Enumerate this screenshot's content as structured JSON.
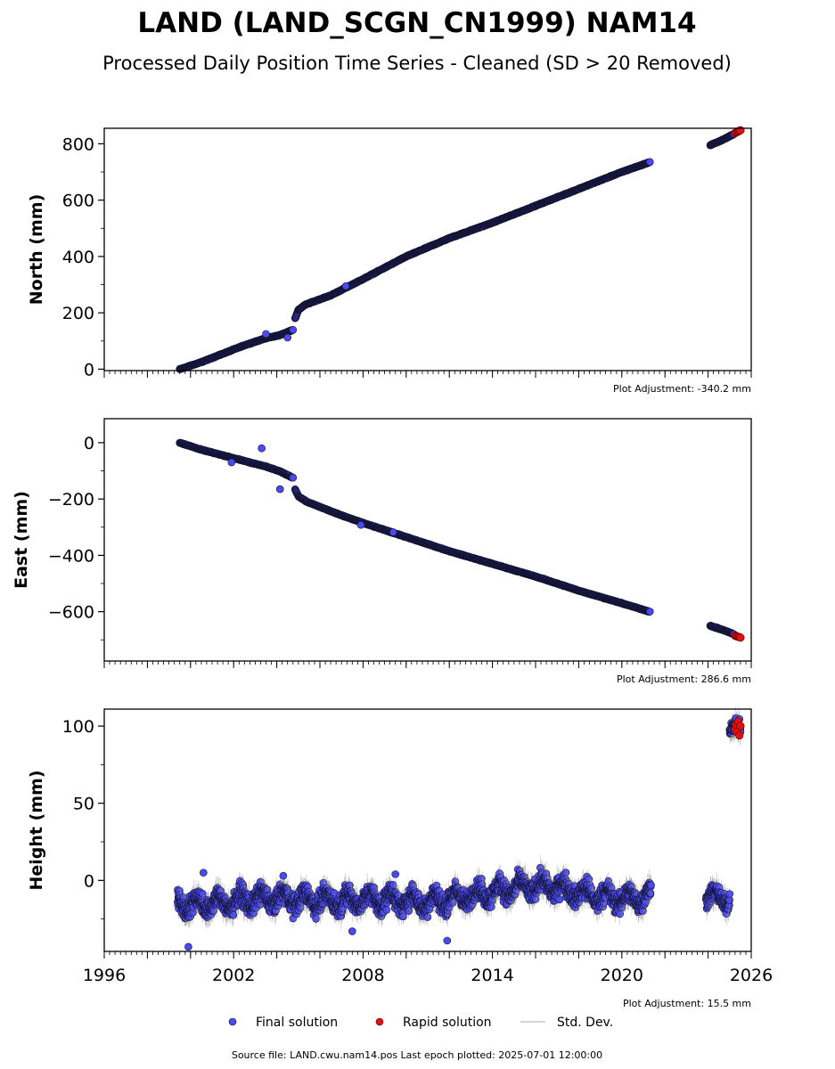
{
  "figure": {
    "title": "LAND (LAND_SCGN_CN1999) NAM14",
    "subtitle": "Processed Daily Position Time Series - Cleaned (SD > 20 Removed)",
    "footer": "Source file: LAND.cwu.nam14.pos  Last epoch plotted: 2025-07-01 12:00:00"
  },
  "legend": {
    "final_label": "Final solution",
    "rapid_label": "Rapid solution",
    "std_label": "Std. Dev."
  },
  "colors": {
    "final_fill": "#4a4aee",
    "final_edge": "#141433",
    "rapid_fill": "#e01010",
    "std_line": "#8a8a8a"
  },
  "chart_data": [
    {
      "type": "scatter",
      "ylabel": "North (mm)",
      "adjustment": "Plot Adjustment: -340.2 mm",
      "xlim": [
        1996,
        2026
      ],
      "ylim": [
        -5,
        855
      ],
      "yticks": [
        0,
        200,
        400,
        600,
        800
      ],
      "ytick_labels": [
        "0",
        "200",
        "400",
        "600",
        "800"
      ],
      "xtick_labels": [],
      "series": [
        {
          "role": "final",
          "segments": [
            {
              "x": [
                1999.5,
                2000.5,
                2001.5,
                2002.5,
                2003.5,
                2004.1,
                2004.75
              ],
              "y": [
                0,
                25,
                55,
                85,
                110,
                120,
                140
              ]
            },
            {
              "x": [
                2004.85,
                2005.0,
                2005.3,
                2005.7,
                2006.5,
                2008.0,
                2010.0,
                2012.0,
                2014.0,
                2016.0,
                2018.0,
                2020.0,
                2021.3
              ],
              "y": [
                180,
                210,
                228,
                240,
                262,
                320,
                400,
                465,
                520,
                580,
                640,
                700,
                735
              ]
            },
            {
              "x": [
                2024.1,
                2024.7,
                2025.2
              ],
              "y": [
                795,
                815,
                835
              ]
            }
          ],
          "outliers": {
            "x": [
              2003.5,
              2007.2,
              2004.5
            ],
            "y": [
              125,
              295,
              112
            ]
          }
        },
        {
          "role": "rapid",
          "x": [
            2025.25,
            2025.3,
            2025.35,
            2025.4,
            2025.45,
            2025.5
          ],
          "y": [
            838,
            840,
            842,
            844,
            846,
            848
          ]
        }
      ]
    },
    {
      "type": "scatter",
      "ylabel": "East (mm)",
      "adjustment": "Plot Adjustment: 286.6 mm",
      "xlim": [
        1996,
        2026
      ],
      "ylim": [
        -775,
        85
      ],
      "yticks": [
        0,
        -200,
        -400,
        -600
      ],
      "ytick_labels": [
        "0",
        "−200",
        "−400",
        "−600"
      ],
      "xtick_labels": [],
      "series": [
        {
          "role": "final",
          "segments": [
            {
              "x": [
                1999.5,
                2000.5,
                2001.5,
                2002.5,
                2003.5,
                2004.1,
                2004.75
              ],
              "y": [
                0,
                -25,
                -45,
                -65,
                -85,
                -100,
                -125
              ]
            },
            {
              "x": [
                2004.85,
                2005.0,
                2005.4,
                2006.0,
                2007.0,
                2008.0,
                2010.0,
                2012.0,
                2014.0,
                2016.0,
                2018.0,
                2020.0,
                2021.3
              ],
              "y": [
                -165,
                -190,
                -210,
                -228,
                -258,
                -285,
                -335,
                -385,
                -430,
                -475,
                -525,
                -570,
                -600
              ]
            },
            {
              "x": [
                2024.1,
                2024.7,
                2025.2
              ],
              "y": [
                -650,
                -665,
                -680
              ]
            }
          ],
          "outliers": {
            "x": [
              2003.3,
              2004.15,
              2001.9,
              2007.9,
              2009.4
            ],
            "y": [
              -20,
              -165,
              -70,
              -292,
              -318
            ]
          }
        },
        {
          "role": "rapid",
          "x": [
            2025.25,
            2025.3,
            2025.35,
            2025.4,
            2025.45,
            2025.5
          ],
          "y": [
            -685,
            -686,
            -688,
            -689,
            -690,
            -692
          ]
        }
      ]
    },
    {
      "type": "scatter",
      "ylabel": "Height (mm)",
      "adjustment": "Plot Adjustment: 15.5 mm",
      "xlim": [
        1996,
        2026
      ],
      "ylim": [
        -46,
        111
      ],
      "yticks": [
        0,
        50,
        100
      ],
      "ytick_labels": [
        "0",
        "50",
        "100"
      ],
      "xticks": [
        1996,
        2002,
        2008,
        2014,
        2020,
        2026
      ],
      "xtick_labels": [
        "1996",
        "2002",
        "2008",
        "2014",
        "2020",
        "2026"
      ],
      "series": [
        {
          "role": "final",
          "noisy_segments": [
            {
              "x_start": 1999.4,
              "x_end": 2021.35,
              "mean_points": [
                [
                  1999.4,
                  -15
                ],
                [
                  2001.0,
                  -15
                ],
                [
                  2003.0,
                  -12
                ],
                [
                  2005.0,
                  -12
                ],
                [
                  2007.0,
                  -13
                ],
                [
                  2009.0,
                  -12
                ],
                [
                  2011.0,
                  -14
                ],
                [
                  2013.0,
                  -10
                ],
                [
                  2015.0,
                  -5
                ],
                [
                  2016.5,
                  -3
                ],
                [
                  2018.0,
                  -8
                ],
                [
                  2020.0,
                  -12
                ],
                [
                  2021.35,
                  -10
                ]
              ],
              "spread": 7
            },
            {
              "x_start": 2023.9,
              "x_end": 2025.0,
              "mean_points": [
                [
                  2023.9,
                  -10
                ],
                [
                  2025.0,
                  -12
                ]
              ],
              "spread": 6
            },
            {
              "x_start": 2025.0,
              "x_end": 2025.5,
              "mean_points": [
                [
                  2025.0,
                  98
                ],
                [
                  2025.5,
                  98
                ]
              ],
              "spread": 4
            }
          ],
          "outliers": {
            "x": [
              1999.9,
              2000.6,
              2007.5,
              2011.9,
              2009.5,
              2004.3
            ],
            "y": [
              -43,
              5,
              -33,
              -39,
              4,
              3
            ]
          }
        },
        {
          "role": "rapid",
          "x": [
            2025.25,
            2025.3,
            2025.35,
            2025.4,
            2025.45,
            2025.5
          ],
          "y": [
            98,
            101,
            96,
            103,
            94,
            100
          ]
        }
      ]
    }
  ]
}
